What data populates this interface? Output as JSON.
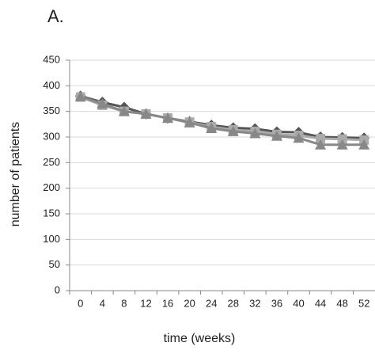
{
  "chart_data": {
    "type": "line",
    "title": "A.",
    "x_label": "time (weeks)",
    "y_label": "number of patients",
    "categories": [
      "0",
      "4",
      "8",
      "12",
      "16",
      "20",
      "24",
      "28",
      "32",
      "36",
      "40",
      "44",
      "48",
      "52"
    ],
    "series": [
      {
        "color": "#555555",
        "marker": "diamond",
        "values": [
          380,
          368,
          358,
          345,
          337,
          330,
          323,
          318,
          316,
          310,
          309,
          300,
          299,
          298
        ]
      },
      {
        "color": "#aaaaaa",
        "marker": "square",
        "values": [
          378,
          362,
          350,
          345,
          337,
          329,
          320,
          314,
          311,
          305,
          303,
          297,
          296,
          294
        ]
      },
      {
        "color": "#888888",
        "marker": "triangle",
        "values": [
          379,
          365,
          350,
          345,
          337,
          328,
          317,
          311,
          307,
          302,
          298,
          285,
          285,
          285
        ]
      }
    ],
    "ylim": [
      0,
      450
    ],
    "yticks": [
      0,
      50,
      100,
      150,
      200,
      250,
      300,
      350,
      400,
      450
    ],
    "grid": true
  }
}
